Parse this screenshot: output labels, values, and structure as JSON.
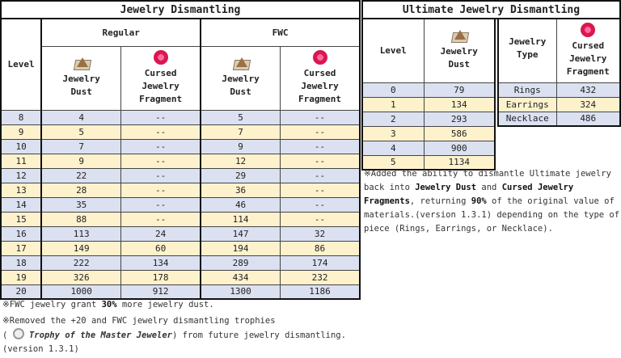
{
  "main_table": {
    "title": "Jewelry Dismantling",
    "level_header": "Level",
    "groups": [
      "Regular",
      "FWC"
    ],
    "columns": [
      {
        "icon": "jewelry-dust-icon",
        "label_line1": "Jewelry",
        "label_line2": "Dust"
      },
      {
        "icon": "cursed-gem-icon",
        "label_line1": "Cursed",
        "label_line2": "Jewelry",
        "label_line3": "Fragment"
      },
      {
        "icon": "jewelry-dust-icon",
        "label_line1": "Jewelry",
        "label_line2": "Dust"
      },
      {
        "icon": "cursed-gem-icon",
        "label_line1": "Cursed",
        "label_line2": "Jewelry",
        "label_line3": "Fragment"
      }
    ],
    "rows": [
      [
        "8",
        "4",
        "--",
        "5",
        "--"
      ],
      [
        "9",
        "5",
        "--",
        "7",
        "--"
      ],
      [
        "10",
        "7",
        "--",
        "9",
        "--"
      ],
      [
        "11",
        "9",
        "--",
        "12",
        "--"
      ],
      [
        "12",
        "22",
        "--",
        "29",
        "--"
      ],
      [
        "13",
        "28",
        "--",
        "36",
        "--"
      ],
      [
        "14",
        "35",
        "--",
        "46",
        "--"
      ],
      [
        "15",
        "88",
        "--",
        "114",
        "--"
      ],
      [
        "16",
        "113",
        "24",
        "147",
        "32"
      ],
      [
        "17",
        "149",
        "60",
        "194",
        "86"
      ],
      [
        "18",
        "222",
        "134",
        "289",
        "174"
      ],
      [
        "19",
        "326",
        "178",
        "434",
        "232"
      ],
      [
        "20",
        "1000",
        "912",
        "1300",
        "1186"
      ]
    ]
  },
  "ultimate": {
    "title": "Ultimate Jewelry Dismantling",
    "level_table": {
      "headers": {
        "level": "Level",
        "dust_line1": "Jewelry",
        "dust_line2": "Dust"
      },
      "rows": [
        [
          "0",
          "79"
        ],
        [
          "1",
          "134"
        ],
        [
          "2",
          "293"
        ],
        [
          "3",
          "586"
        ],
        [
          "4",
          "900"
        ],
        [
          "5",
          "1134"
        ]
      ]
    },
    "type_table": {
      "headers": {
        "type_line1": "Jewelry",
        "type_line2": "Type",
        "frag_line1": "Cursed",
        "frag_line2": "Jewelry",
        "frag_line3": "Fragment"
      },
      "rows": [
        [
          "Rings",
          "432"
        ],
        [
          "Earrings",
          "324"
        ],
        [
          "Necklace",
          "486"
        ]
      ]
    }
  },
  "notes": {
    "ultimate_note": {
      "p1": "※Added the ability to dismantle Ultimate jewelry back into ",
      "b1": "Jewelry Dust",
      "p2": " and ",
      "b2": "Cursed Jewelry Fragments",
      "p3": ", returning ",
      "b3": "90%",
      "p4": " of the original value of materials.(version 1.3.1) depending on the type of piece (Rings, Earrings, or Necklace)."
    },
    "fwc_note": {
      "p1": "※FWC jewelry grant ",
      "b1": "30%",
      "p2": " more jewelry dust."
    },
    "trophy_note": {
      "p1": "※Removed the +20 and FWC jewelry dismantling trophies",
      "p2": "( ",
      "i1": "Trophy of the Master Jeweler",
      "p3": ") from future jewelry dismantling.(version 1.3.1)"
    }
  },
  "colors": {
    "row_blue": "#dbe1f1",
    "row_yellow": "#fef2cd",
    "border": "#111111"
  }
}
